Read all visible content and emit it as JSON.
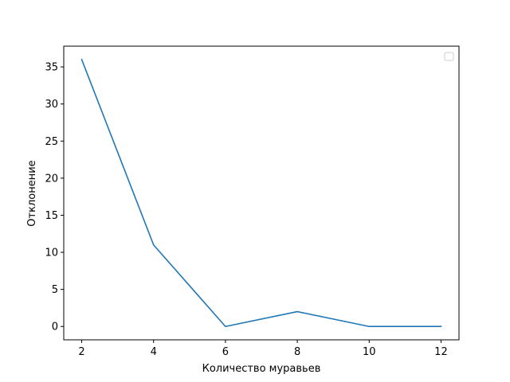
{
  "chart_data": {
    "type": "line",
    "title": "",
    "xlabel": "Количество муравьев",
    "ylabel": "Отклонение",
    "xlim": [
      1.5,
      12.5
    ],
    "ylim": [
      -1.8,
      37.8
    ],
    "xticks": [
      2,
      4,
      6,
      8,
      10,
      12
    ],
    "yticks": [
      0,
      5,
      10,
      15,
      20,
      25,
      30,
      35
    ],
    "xtick_labels": [
      "2",
      "4",
      "6",
      "8",
      "10",
      "12"
    ],
    "ytick_labels": [
      "0",
      "5",
      "10",
      "15",
      "20",
      "25",
      "30",
      "35"
    ],
    "grid": false,
    "legend": "top-right, empty",
    "series": [
      {
        "color": "#1f77b4",
        "x": [
          2,
          4,
          6,
          8,
          10,
          12
        ],
        "y": [
          36,
          11,
          0,
          2,
          0,
          0
        ]
      }
    ]
  }
}
